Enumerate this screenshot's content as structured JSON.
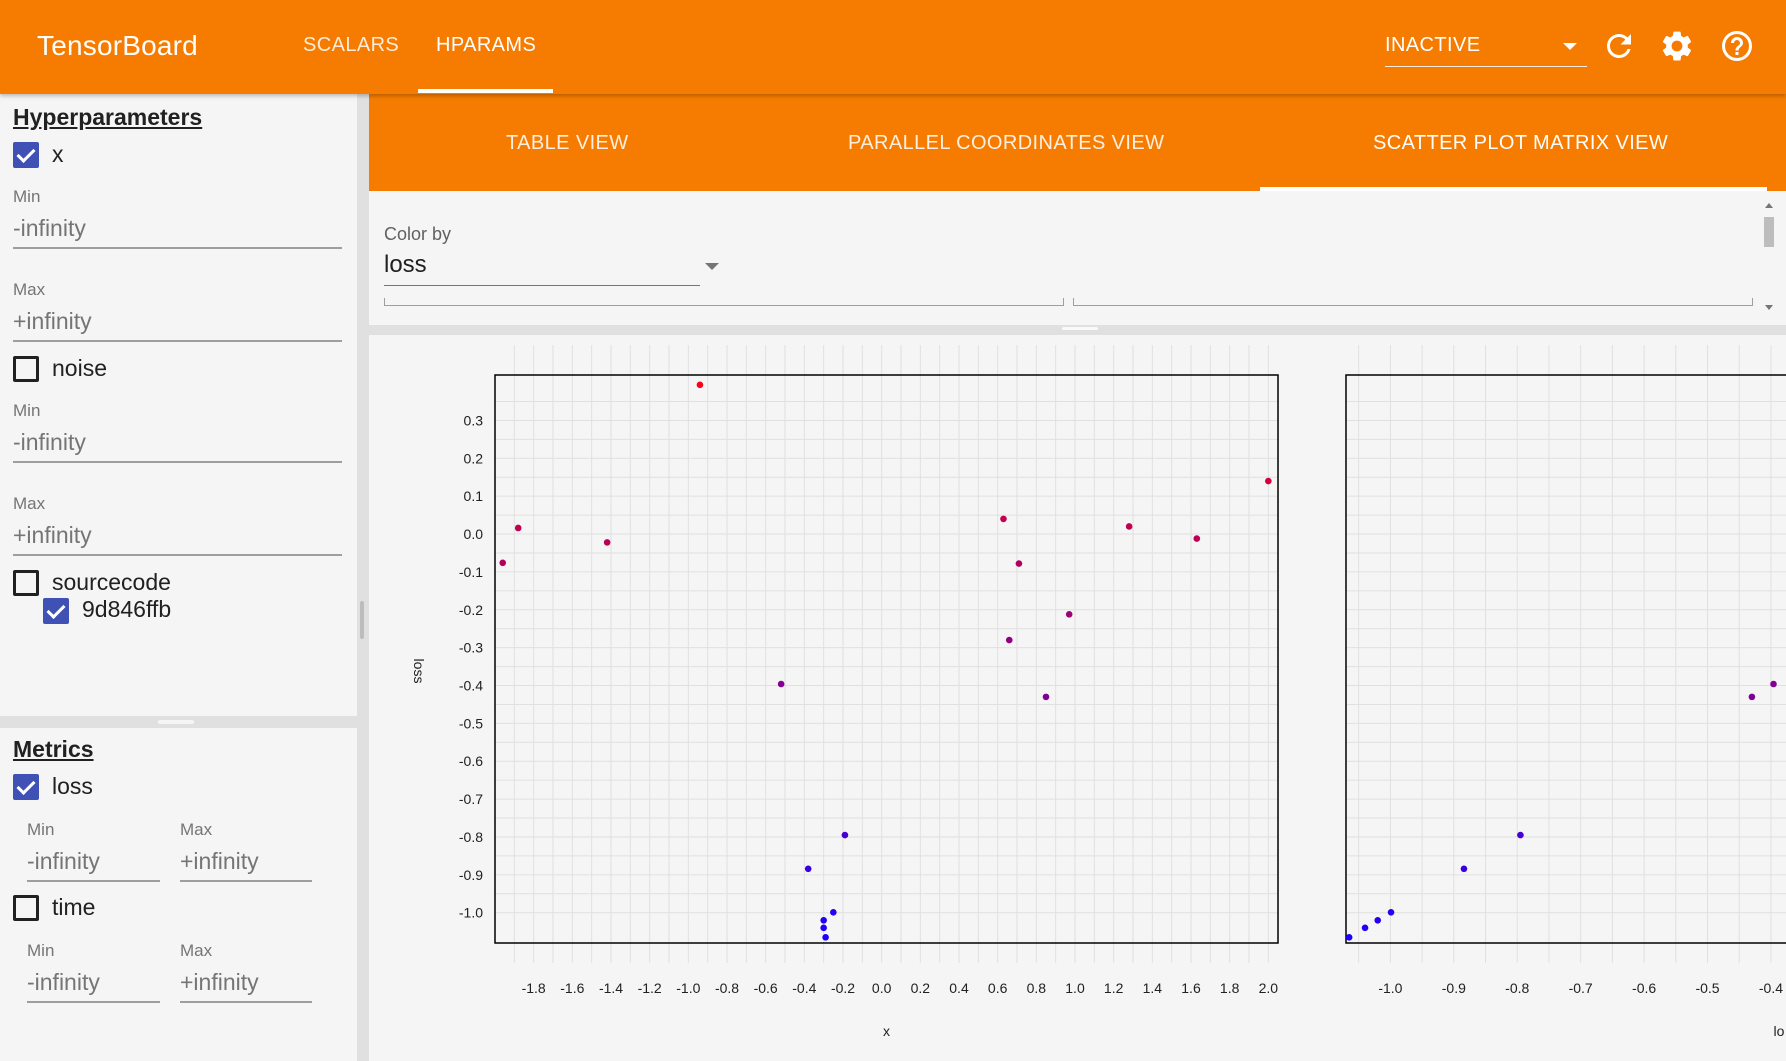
{
  "header": {
    "brand": "TensorBoard",
    "tabs": [
      {
        "label": "SCALARS",
        "active": false
      },
      {
        "label": "HPARAMS",
        "active": true
      }
    ],
    "run_state": "INACTIVE",
    "icons": [
      "refresh-icon",
      "settings-icon",
      "help-icon"
    ],
    "accent_color": "#f57c00"
  },
  "sidebar": {
    "hyperparameters_title": "Hyperparameters",
    "hparams": [
      {
        "name": "x",
        "checked": true,
        "min_label": "Min",
        "min_value": "-infinity",
        "max_label": "Max",
        "max_value": "+infinity"
      },
      {
        "name": "noise",
        "checked": false,
        "min_label": "Min",
        "min_value": "-infinity",
        "max_label": "Max",
        "max_value": "+infinity"
      },
      {
        "name": "sourcecode",
        "checked": false,
        "options": [
          {
            "label": "9d846ffb",
            "checked": true
          }
        ]
      }
    ],
    "metrics_title": "Metrics",
    "metrics": [
      {
        "name": "loss",
        "checked": true,
        "min_label": "Min",
        "min_value": "-infinity",
        "max_label": "Max",
        "max_value": "+infinity"
      },
      {
        "name": "time",
        "checked": false,
        "min_label": "Min",
        "min_value": "-infinity",
        "max_label": "Max",
        "max_value": "+infinity"
      }
    ],
    "checkbox_color": "#3f51b5"
  },
  "subtabs": [
    {
      "label": "TABLE VIEW",
      "active": false
    },
    {
      "label": "PARALLEL COORDINATES VIEW",
      "active": false
    },
    {
      "label": "SCATTER PLOT MATRIX VIEW",
      "active": true
    }
  ],
  "color_by": {
    "label": "Color by",
    "value": "loss"
  },
  "chart_data": [
    {
      "type": "scatter",
      "xlabel": "x",
      "ylabel": "loss",
      "xlim": [
        -2.0,
        2.05
      ],
      "ylim": [
        -1.08,
        0.42
      ],
      "x_ticks": [
        "-1.8",
        "-1.6",
        "-1.4",
        "-1.2",
        "-1.0",
        "-0.8",
        "-0.6",
        "-0.4",
        "-0.2",
        "0.0",
        "0.2",
        "0.4",
        "0.6",
        "0.8",
        "1.0",
        "1.2",
        "1.4",
        "1.6",
        "1.8",
        "2.0"
      ],
      "y_ticks": [
        "0.3",
        "0.2",
        "0.1",
        "0.0",
        "-0.1",
        "-0.2",
        "-0.3",
        "-0.4",
        "-0.5",
        "-0.6",
        "-0.7",
        "-0.8",
        "-0.9",
        "-1.0"
      ],
      "grid": true,
      "points": [
        {
          "x": -1.96,
          "y": -0.076
        },
        {
          "x": -1.88,
          "y": 0.016
        },
        {
          "x": -1.42,
          "y": -0.022
        },
        {
          "x": -0.94,
          "y": 0.394
        },
        {
          "x": -0.52,
          "y": -0.396
        },
        {
          "x": -0.19,
          "y": -0.795
        },
        {
          "x": -0.38,
          "y": -0.884
        },
        {
          "x": -0.25,
          "y": -0.999
        },
        {
          "x": -0.3,
          "y": -1.02
        },
        {
          "x": -0.3,
          "y": -1.04
        },
        {
          "x": -0.29,
          "y": -1.065
        },
        {
          "x": 0.63,
          "y": 0.04
        },
        {
          "x": 0.71,
          "y": -0.078
        },
        {
          "x": 0.66,
          "y": -0.28
        },
        {
          "x": 0.85,
          "y": -0.43
        },
        {
          "x": 0.97,
          "y": -0.212
        },
        {
          "x": 1.28,
          "y": 0.02
        },
        {
          "x": 1.63,
          "y": -0.012
        },
        {
          "x": 2.0,
          "y": 0.14
        }
      ]
    },
    {
      "type": "scatter",
      "xlabel": "lo",
      "ylabel": "loss",
      "xlim": [
        -1.07,
        -0.34
      ],
      "ylim": [
        -1.08,
        0.42
      ],
      "x_ticks": [
        "-1.0",
        "-0.9",
        "-0.8",
        "-0.7",
        "-0.6",
        "-0.5",
        "-0.4"
      ],
      "grid": true,
      "points": [
        {
          "x": -1.065,
          "y": -1.065
        },
        {
          "x": -1.04,
          "y": -1.04
        },
        {
          "x": -1.02,
          "y": -1.02
        },
        {
          "x": -0.999,
          "y": -0.999
        },
        {
          "x": -0.884,
          "y": -0.884
        },
        {
          "x": -0.795,
          "y": -0.795
        },
        {
          "x": -0.43,
          "y": -0.43
        },
        {
          "x": -0.396,
          "y": -0.396
        }
      ]
    }
  ],
  "point_color_scale": {
    "low": "#1a00ff",
    "high": "#ff0010"
  }
}
